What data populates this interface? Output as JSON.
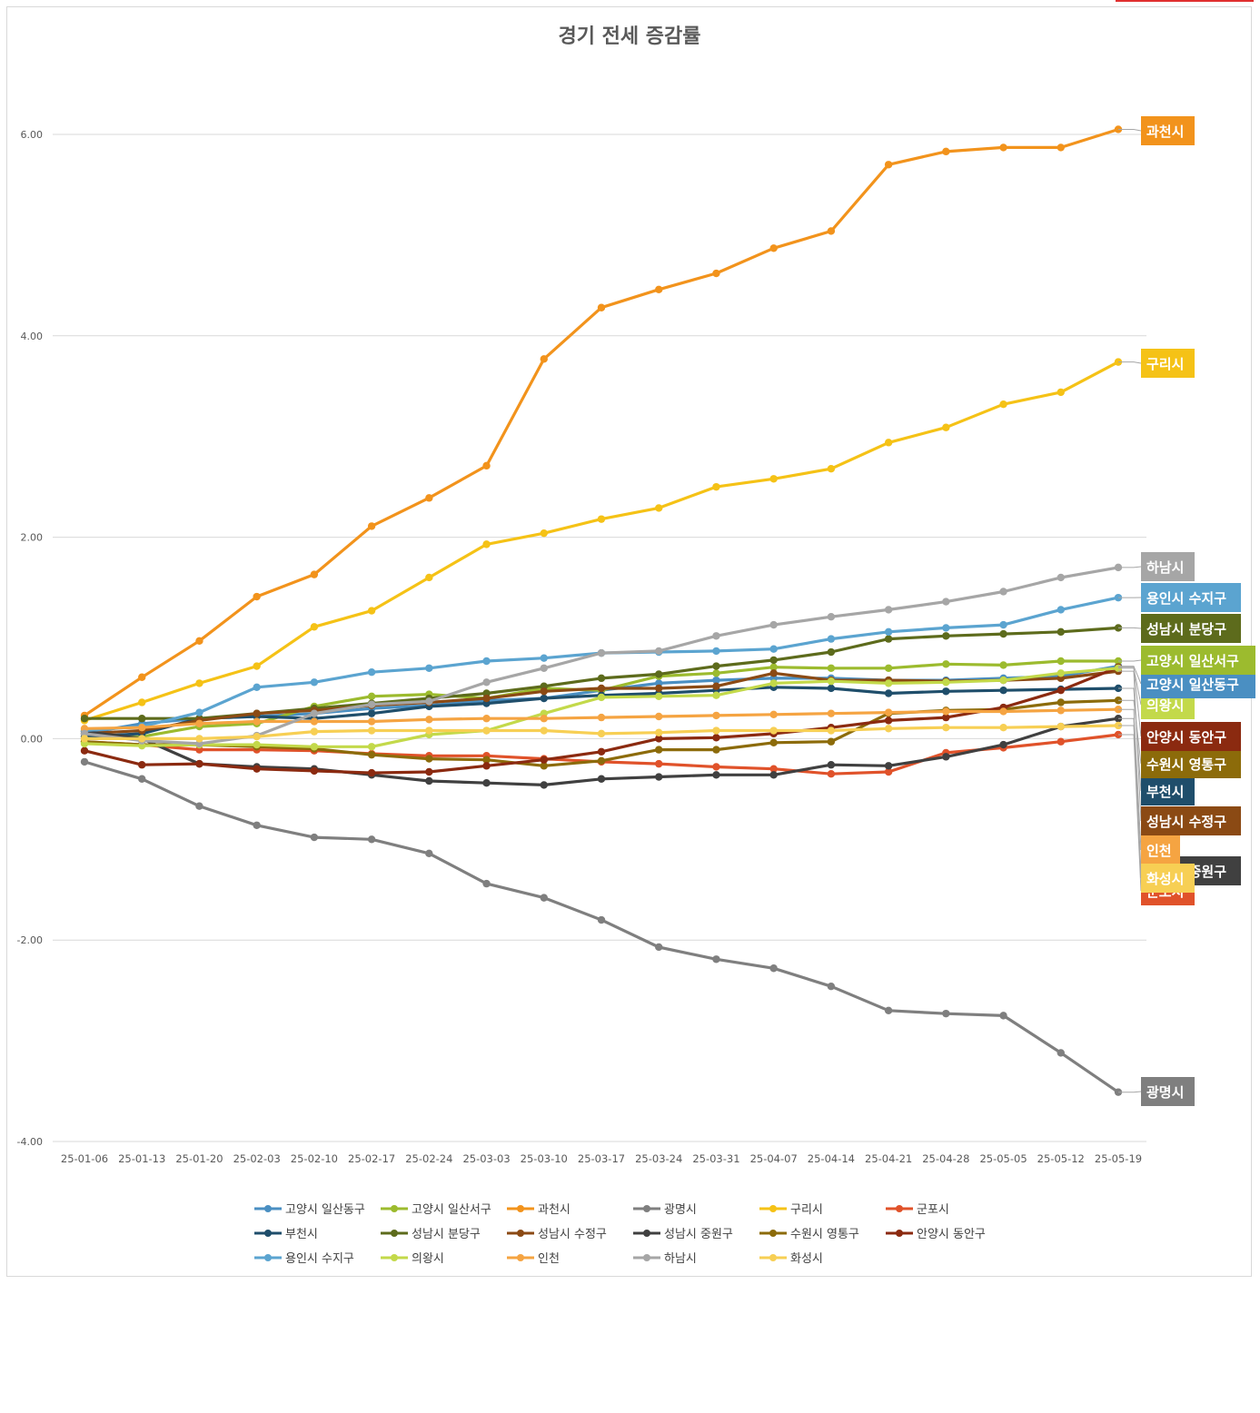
{
  "chart_data": {
    "type": "line",
    "title": "경기 전세 증감률",
    "xlabel": "",
    "ylabel": "",
    "ylim": [
      -4,
      6
    ],
    "yticks": [
      6,
      4,
      2,
      0,
      -2,
      -4
    ],
    "ytick_labels": [
      "6.00",
      "4.00",
      "2.00",
      "0.00",
      "-2.00",
      "-4.00"
    ],
    "grid": true,
    "legend_position": "bottom",
    "x": [
      "25-01-06",
      "25-01-13",
      "25-01-20",
      "25-02-03",
      "25-02-10",
      "25-02-17",
      "25-02-24",
      "25-03-03",
      "25-03-10",
      "25-03-17",
      "25-03-24",
      "25-03-31",
      "25-04-07",
      "25-04-14",
      "25-04-21",
      "25-04-28",
      "25-05-05",
      "25-05-12",
      "25-05-19"
    ],
    "series": [
      {
        "name": "고양시 일산동구",
        "color": "#4a8fc2",
        "end_label": "고양시 일산동구",
        "values": [
          0.05,
          0.15,
          0.2,
          0.22,
          0.25,
          0.3,
          0.33,
          0.38,
          0.4,
          0.48,
          0.55,
          0.58,
          0.6,
          0.6,
          0.58,
          0.58,
          0.6,
          0.62,
          0.72
        ]
      },
      {
        "name": "고양시 일산서구",
        "color": "#9cbb2e",
        "end_label": "고양시 일산서구",
        "values": [
          0.0,
          0.02,
          0.12,
          0.15,
          0.32,
          0.42,
          0.44,
          0.4,
          0.5,
          0.48,
          0.62,
          0.65,
          0.71,
          0.7,
          0.7,
          0.74,
          0.73,
          0.77,
          0.77
        ]
      },
      {
        "name": "과천시",
        "color": "#f2931c",
        "end_label": "과천시",
        "values": [
          0.23,
          0.61,
          0.97,
          1.41,
          1.63,
          2.11,
          2.39,
          2.71,
          3.77,
          4.28,
          4.46,
          4.62,
          4.87,
          5.04,
          5.7,
          5.83,
          5.87,
          5.87,
          6.05
        ]
      },
      {
        "name": "광명시",
        "color": "#7f7f7f",
        "end_label": "광명시",
        "values": [
          -0.23,
          -0.4,
          -0.67,
          -0.86,
          -0.98,
          -1.0,
          -1.14,
          -1.44,
          -1.58,
          -1.8,
          -2.07,
          -2.19,
          -2.28,
          -2.46,
          -2.7,
          -2.73,
          -2.75,
          -3.12,
          -3.51
        ]
      },
      {
        "name": "구리시",
        "color": "#f5c216",
        "end_label": "구리시",
        "values": [
          0.18,
          0.36,
          0.55,
          0.72,
          1.11,
          1.27,
          1.6,
          1.93,
          2.04,
          2.18,
          2.29,
          2.5,
          2.58,
          2.68,
          2.94,
          3.09,
          3.32,
          3.44,
          3.74
        ]
      },
      {
        "name": "군포시",
        "color": "#e0522a",
        "end_label": "군포시",
        "values": [
          -0.03,
          -0.06,
          -0.11,
          -0.11,
          -0.12,
          -0.15,
          -0.17,
          -0.17,
          -0.2,
          -0.23,
          -0.25,
          -0.28,
          -0.3,
          -0.35,
          -0.33,
          -0.14,
          -0.09,
          -0.03,
          0.04
        ]
      },
      {
        "name": "부천시",
        "color": "#1f4e6b",
        "end_label": "부천시",
        "values": [
          0.02,
          0.05,
          0.2,
          0.22,
          0.2,
          0.25,
          0.32,
          0.35,
          0.4,
          0.43,
          0.45,
          0.48,
          0.51,
          0.5,
          0.45,
          0.47,
          0.48,
          0.49,
          0.5
        ]
      },
      {
        "name": "성남시 분당구",
        "color": "#5d6b1c",
        "end_label": "성남시 분당구",
        "values": [
          0.2,
          0.2,
          0.2,
          0.25,
          0.3,
          0.35,
          0.4,
          0.45,
          0.52,
          0.6,
          0.64,
          0.72,
          0.78,
          0.86,
          0.99,
          1.02,
          1.04,
          1.06,
          1.1
        ]
      },
      {
        "name": "성남시 수정구",
        "color": "#8b4a14",
        "end_label": "성남시 수정구",
        "values": [
          0.05,
          0.08,
          0.18,
          0.25,
          0.28,
          0.33,
          0.36,
          0.4,
          0.47,
          0.5,
          0.5,
          0.52,
          0.65,
          0.58,
          0.58,
          0.57,
          0.58,
          0.6,
          0.67
        ]
      },
      {
        "name": "성남시 중원구",
        "color": "#404040",
        "end_label": "성남시 중원구",
        "values": [
          0.07,
          0.0,
          -0.25,
          -0.28,
          -0.3,
          -0.36,
          -0.42,
          -0.44,
          -0.46,
          -0.4,
          -0.38,
          -0.36,
          -0.36,
          -0.26,
          -0.27,
          -0.18,
          -0.06,
          0.12,
          0.2
        ]
      },
      {
        "name": "수원시 영통구",
        "color": "#8c6b0a",
        "end_label": "수원시 영통구",
        "values": [
          -0.03,
          -0.06,
          -0.06,
          -0.08,
          -0.1,
          -0.16,
          -0.2,
          -0.21,
          -0.27,
          -0.22,
          -0.11,
          -0.11,
          -0.04,
          -0.03,
          0.25,
          0.28,
          0.29,
          0.36,
          0.38
        ]
      },
      {
        "name": "안양시 동안구",
        "color": "#8b2a10",
        "end_label": "안양시 동안구",
        "values": [
          -0.12,
          -0.26,
          -0.25,
          -0.3,
          -0.32,
          -0.34,
          -0.33,
          -0.27,
          -0.21,
          -0.13,
          0.0,
          0.01,
          0.05,
          0.11,
          0.18,
          0.21,
          0.31,
          0.48,
          0.71
        ]
      },
      {
        "name": "용인시 수지구",
        "color": "#5ba4d0",
        "end_label": "용인시 수지구",
        "values": [
          0.08,
          0.12,
          0.26,
          0.51,
          0.56,
          0.66,
          0.7,
          0.77,
          0.8,
          0.85,
          0.86,
          0.87,
          0.89,
          0.99,
          1.06,
          1.1,
          1.13,
          1.28,
          1.4
        ]
      },
      {
        "name": "의왕시",
        "color": "#c3d94a",
        "end_label": "의왕시",
        "values": [
          -0.05,
          -0.07,
          -0.06,
          -0.06,
          -0.08,
          -0.08,
          0.04,
          0.08,
          0.25,
          0.41,
          0.42,
          0.43,
          0.55,
          0.57,
          0.55,
          0.56,
          0.58,
          0.65,
          0.7
        ]
      },
      {
        "name": "인천",
        "color": "#f5a442",
        "end_label": "인천",
        "values": [
          0.1,
          0.11,
          0.15,
          0.17,
          0.17,
          0.17,
          0.19,
          0.2,
          0.2,
          0.21,
          0.22,
          0.23,
          0.24,
          0.25,
          0.26,
          0.27,
          0.27,
          0.28,
          0.29
        ]
      },
      {
        "name": "하남시",
        "color": "#a6a6a6",
        "end_label": "하남시",
        "values": [
          0.05,
          -0.02,
          -0.05,
          0.03,
          0.25,
          0.34,
          0.37,
          0.56,
          0.7,
          0.85,
          0.87,
          1.02,
          1.13,
          1.21,
          1.28,
          1.36,
          1.46,
          1.6,
          1.7
        ]
      },
      {
        "name": "화성시",
        "color": "#f7cf54",
        "end_label": "화성시",
        "values": [
          0.0,
          0.0,
          0.0,
          0.02,
          0.07,
          0.08,
          0.08,
          0.08,
          0.08,
          0.05,
          0.06,
          0.08,
          0.08,
          0.08,
          0.1,
          0.11,
          0.11,
          0.12,
          0.13
        ]
      }
    ]
  }
}
